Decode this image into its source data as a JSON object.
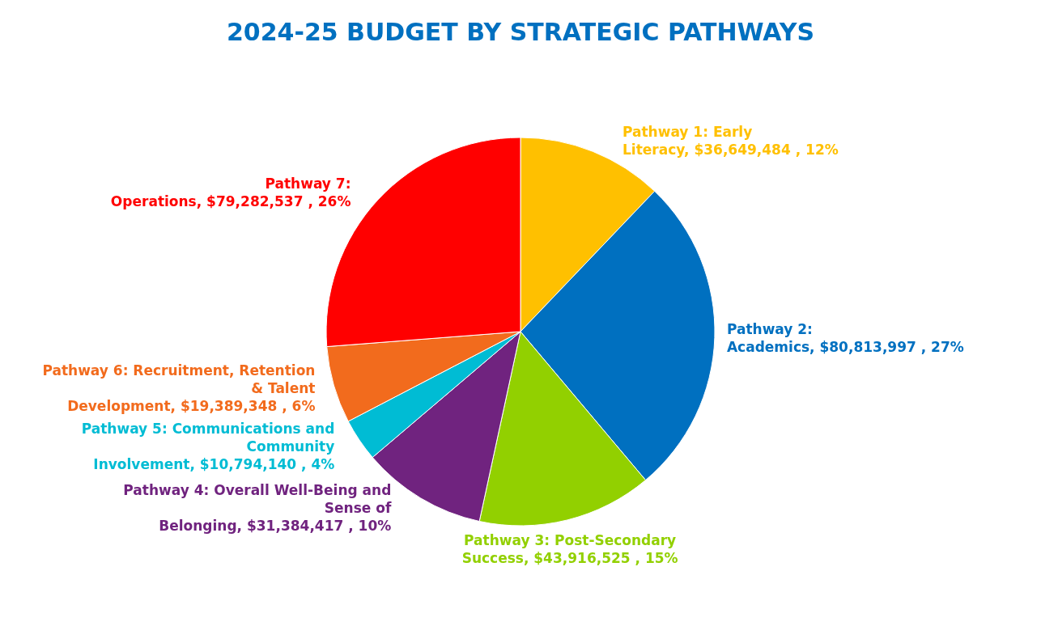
{
  "chart_data": {
    "type": "pie",
    "title": "2024-25 BUDGET BY STRATEGIC PATHWAYS",
    "categories": [
      "Pathway 1: Early Literacy",
      "Pathway 2: Academics",
      "Pathway 3:  Post-Secondary Success",
      "Pathway 4:  Overall Well-Being and Sense of Belonging",
      "Pathway 5: Communications and Community Involvement",
      "Pathway 6: Recruitment, Retention & Talent Development",
      "Pathway 7: Operations"
    ],
    "values": [
      36649484,
      80813997,
      43916525,
      31384417,
      10794140,
      19389348,
      79282537
    ],
    "value_labels": [
      "$36,649,484 , 12%",
      "$80,813,997 , 27%",
      "$43,916,525 , 15%",
      "$31,384,417 , 10%",
      "$10,794,140 , 4%",
      "$19,389,348 , 6%",
      "$79,282,537 , 26%"
    ],
    "colors": [
      "#ffc000",
      "#0070c0",
      "#92d000",
      "#70237f",
      "#00bcd4",
      "#f26b1d",
      "#ff0000"
    ]
  }
}
